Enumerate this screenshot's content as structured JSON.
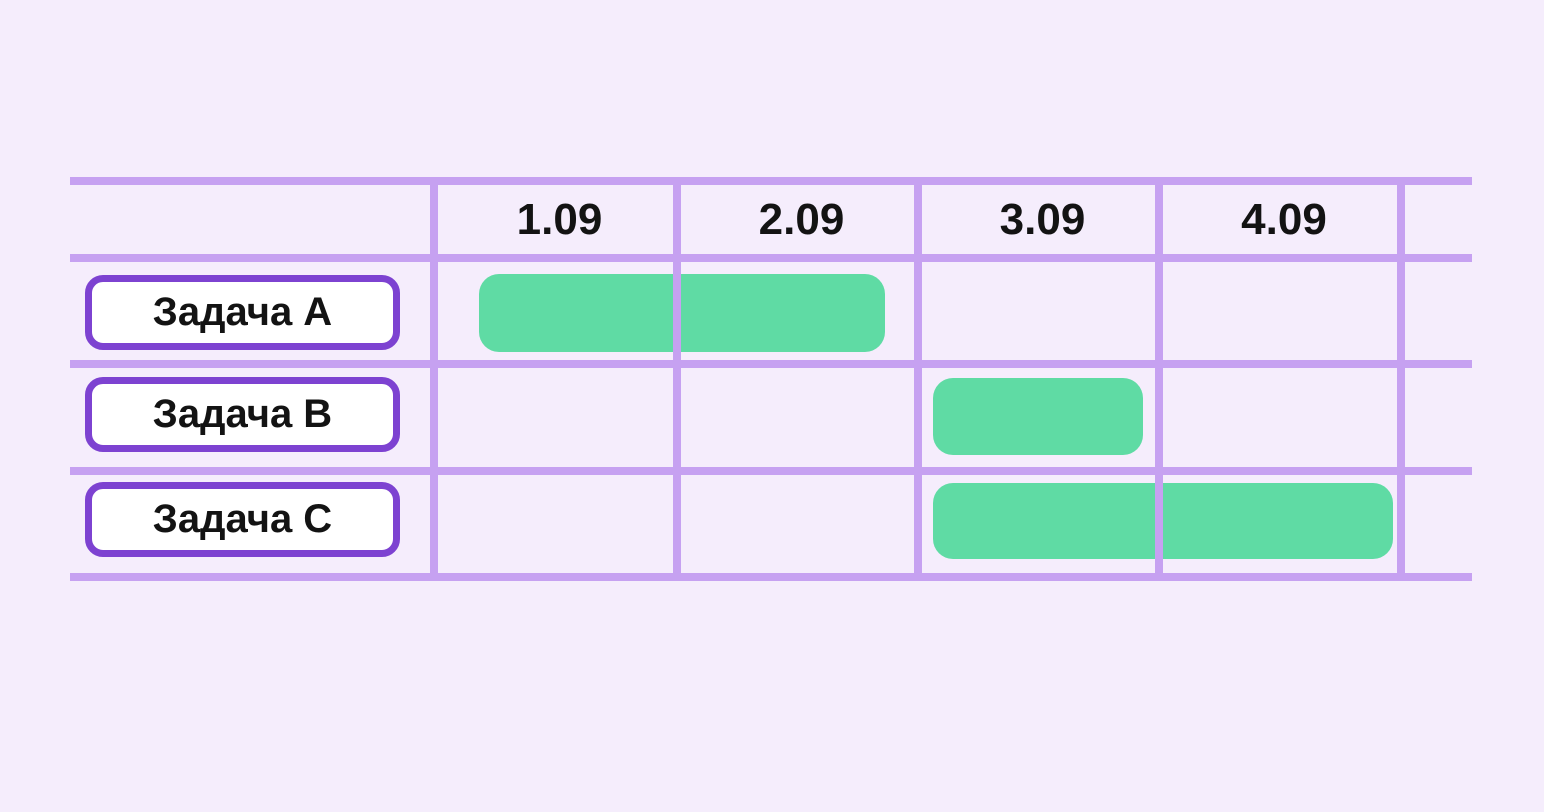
{
  "chart_data": {
    "type": "gantt",
    "title": "",
    "columns": [
      "1.09",
      "2.09",
      "3.09",
      "4.09"
    ],
    "tasks": [
      {
        "label": "Задача A",
        "start": "1.09",
        "end": "2.09"
      },
      {
        "label": "Задача B",
        "start": "3.09",
        "end": "3.09"
      },
      {
        "label": "Задача C",
        "start": "3.09",
        "end": "4.09"
      }
    ],
    "legend": false,
    "grid": true,
    "bar_color": "#5fdba4",
    "grid_color": "#c6a1f1"
  },
  "colors": {
    "background": "#f5edfc",
    "grid_line": "#c6a1f1",
    "bar_fill": "#5fdba4",
    "label_border": "#7d42d1",
    "label_fill": "#ffffff",
    "text": "#131313"
  }
}
